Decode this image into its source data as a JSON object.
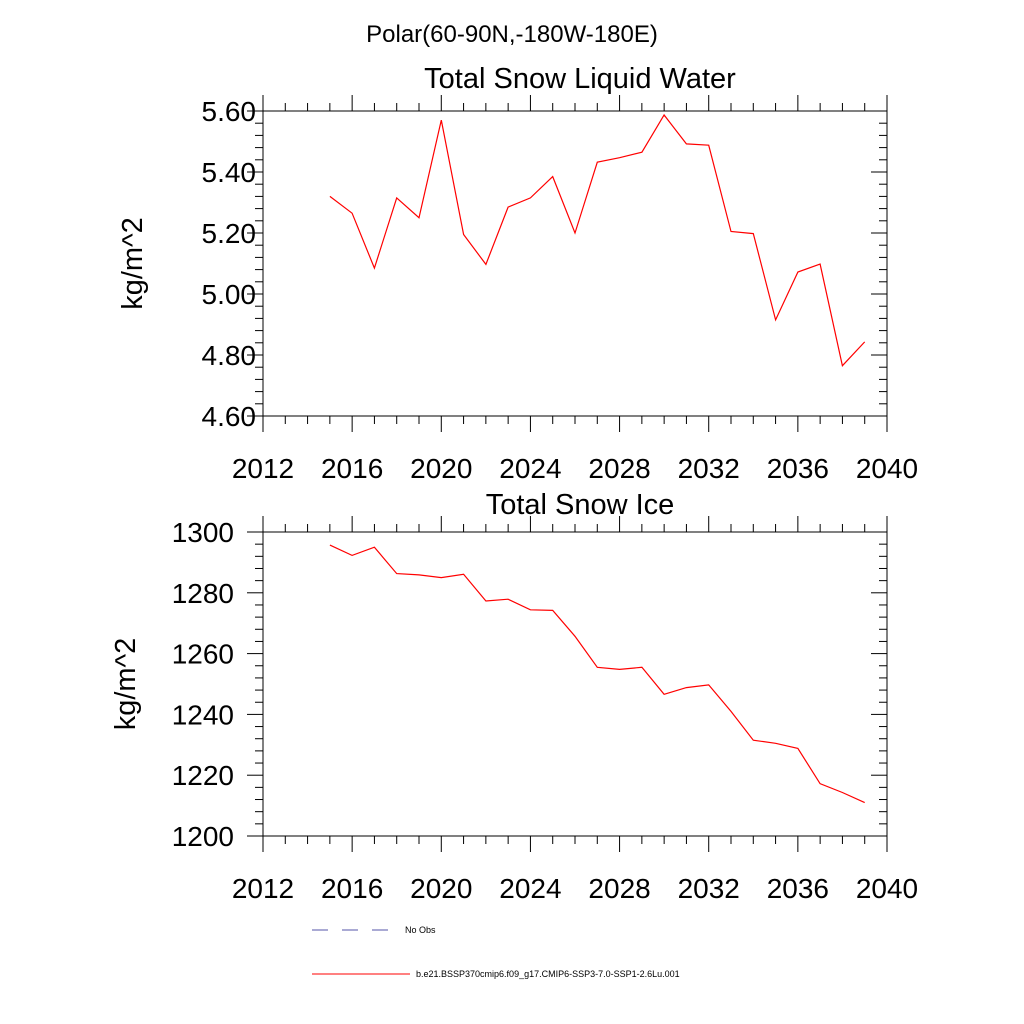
{
  "figure": {
    "suptitle": "Polar(60-90N,-180W-180E)"
  },
  "chart_data": [
    {
      "type": "line",
      "title": "Total Snow Liquid Water",
      "xlabel": "",
      "ylabel": "kg/m^2",
      "xlim": [
        2012,
        2040
      ],
      "ylim": [
        4.6,
        5.6
      ],
      "xticks": [
        2012,
        2016,
        2020,
        2024,
        2028,
        2032,
        2036,
        2040
      ],
      "yticks": [
        4.6,
        4.8,
        5.0,
        5.2,
        5.4,
        5.6
      ],
      "ytick_labels": [
        "4.60",
        "4.80",
        "5.00",
        "5.20",
        "5.40",
        "5.60"
      ],
      "x": [
        2015,
        2016,
        2017,
        2018,
        2019,
        2020,
        2021,
        2022,
        2023,
        2024,
        2025,
        2026,
        2027,
        2028,
        2029,
        2030,
        2031,
        2032,
        2033,
        2034,
        2035,
        2036,
        2037,
        2038,
        2039
      ],
      "series": [
        {
          "name": "b.e21.BSSP370cmip6.f09_g17.CMIP6-SSP3-7.0-SSP1-2.6Lu.001",
          "color": "#ff0000",
          "values": [
            5.32,
            5.265,
            5.085,
            5.315,
            5.25,
            5.57,
            5.195,
            5.097,
            5.285,
            5.315,
            5.385,
            5.2,
            5.432,
            5.447,
            5.465,
            5.587,
            5.492,
            5.488,
            5.205,
            5.198,
            4.915,
            5.072,
            5.098,
            4.765,
            4.843
          ]
        }
      ],
      "grid": false
    },
    {
      "type": "line",
      "title": "Total Snow Ice",
      "xlabel": "",
      "ylabel": "kg/m^2",
      "xlim": [
        2012,
        2040
      ],
      "ylim": [
        1200,
        1300
      ],
      "xticks": [
        2012,
        2016,
        2020,
        2024,
        2028,
        2032,
        2036,
        2040
      ],
      "yticks": [
        1200,
        1220,
        1240,
        1260,
        1280,
        1300
      ],
      "ytick_labels": [
        "1200",
        "1220",
        "1240",
        "1260",
        "1280",
        "1300"
      ],
      "x": [
        2015,
        2016,
        2017,
        2018,
        2019,
        2020,
        2021,
        2022,
        2023,
        2024,
        2025,
        2026,
        2027,
        2028,
        2029,
        2030,
        2031,
        2032,
        2033,
        2034,
        2035,
        2036,
        2037,
        2038,
        2039
      ],
      "series": [
        {
          "name": "b.e21.BSSP370cmip6.f09_g17.CMIP6-SSP3-7.0-SSP1-2.6Lu.001",
          "color": "#ff0000",
          "values": [
            1295.7,
            1292.3,
            1295.0,
            1286.3,
            1285.9,
            1285.0,
            1286.1,
            1277.3,
            1277.9,
            1274.4,
            1274.2,
            1265.7,
            1255.5,
            1254.8,
            1255.5,
            1246.6,
            1248.8,
            1249.7,
            1241.0,
            1231.5,
            1230.5,
            1228.8,
            1217.2,
            1214.3,
            1211.0
          ]
        }
      ],
      "grid": false
    }
  ],
  "legend": {
    "placement": "bottom",
    "items": [
      {
        "label": "No Obs",
        "color": "#5555aa",
        "style": "dashed"
      },
      {
        "label": "b.e21.BSSP370cmip6.f09_g17.CMIP6-SSP3-7.0-SSP1-2.6Lu.001",
        "color": "#ff0000",
        "style": "solid"
      }
    ]
  }
}
